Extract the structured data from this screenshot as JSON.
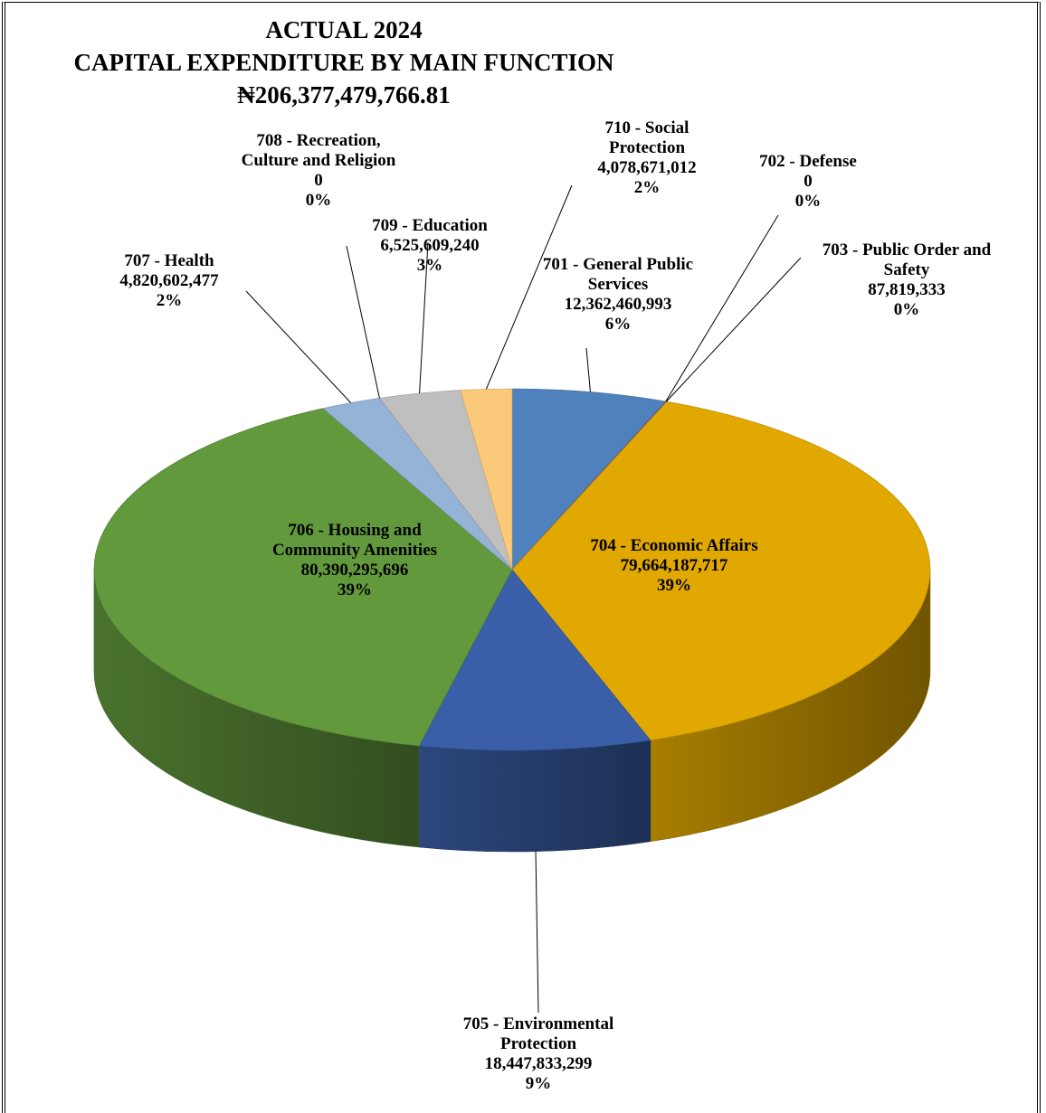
{
  "chart_data": {
    "type": "pie3d",
    "title": "ACTUAL 2024",
    "subtitle": "CAPITAL EXPENDITURE BY  MAIN FUNCTION",
    "total_label": "₦206,377,479,766.81",
    "categories": [
      "701 - General Public Services",
      "702 - Defense",
      "703 - Public Order and Safety",
      "704 - Economic Affairs",
      "705 - Environmental Protection",
      "706 - Housing and Community Amenities",
      "707 - Health",
      "708 - Recreation, Culture and Religion",
      "709 - Education",
      "710 - Social Protection"
    ],
    "values": [
      12362460993,
      0,
      87819333,
      79664187717,
      18447833299,
      80390295696,
      4820602477,
      0,
      6525609240,
      4078671012
    ],
    "value_labels": [
      "12,362,460,993",
      "0",
      "87,819,333",
      "79,664,187,717",
      "18,447,833,299",
      "80,390,295,696",
      "4,820,602,477",
      "0",
      "6,525,609,240",
      "4,078,671,012"
    ],
    "percent_labels": [
      "6%",
      "0%",
      "0%",
      "39%",
      "9%",
      "39%",
      "2%",
      "0%",
      "3%",
      "2%"
    ],
    "colors": [
      "#4f81bd",
      "#c0504d",
      "#8064a2",
      "#e0a800",
      "#3a5fa8",
      "#63993d",
      "#95b3d7",
      "#7f7f7f",
      "#bfbfbf",
      "#fac97a"
    ]
  }
}
